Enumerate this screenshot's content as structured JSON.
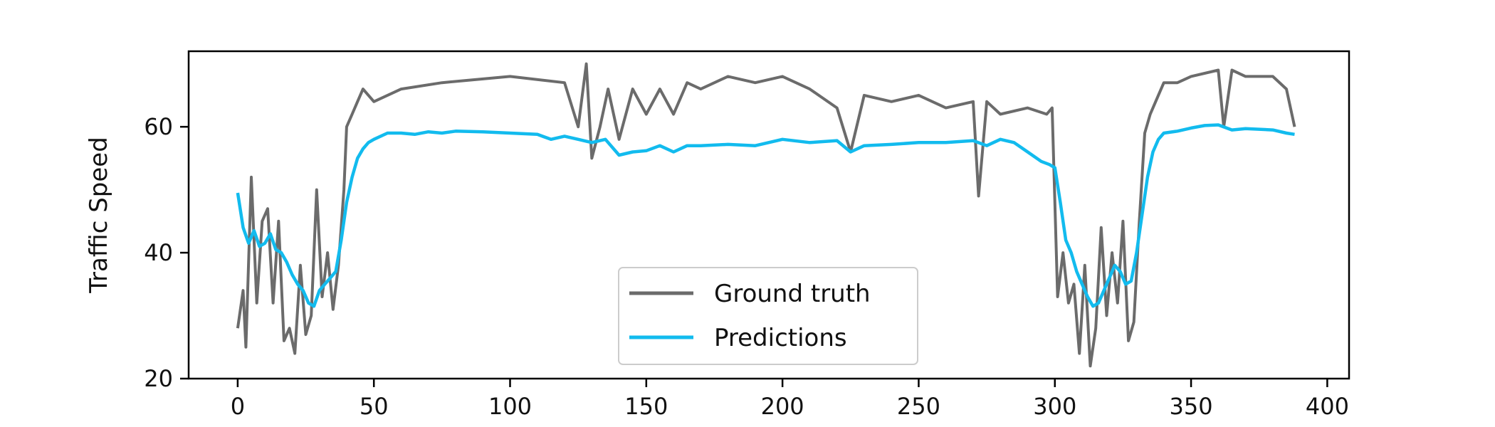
{
  "chart_data": {
    "type": "line",
    "title": "",
    "xlabel": "",
    "ylabel": "Traffic Speed",
    "xlim": [
      -18,
      408
    ],
    "ylim": [
      20,
      72
    ],
    "xticks": [
      "0",
      "50",
      "100",
      "150",
      "200",
      "250",
      "300",
      "350",
      "400"
    ],
    "yticks": [
      "20",
      "40",
      "60"
    ],
    "legend": {
      "placement": "bottom-center"
    },
    "grid": false,
    "series": [
      {
        "name": "Ground truth",
        "color": "#6b6b6b",
        "x": [
          0,
          2,
          3,
          5,
          7,
          9,
          11,
          13,
          15,
          17,
          19,
          21,
          23,
          25,
          27,
          29,
          31,
          33,
          35,
          37,
          39,
          40,
          42,
          44,
          46,
          50,
          60,
          75,
          100,
          120,
          125,
          128,
          130,
          133,
          136,
          140,
          145,
          150,
          155,
          160,
          165,
          170,
          175,
          180,
          190,
          200,
          210,
          220,
          225,
          230,
          240,
          250,
          260,
          270,
          272,
          275,
          280,
          290,
          297,
          299,
          301,
          303,
          305,
          307,
          309,
          311,
          313,
          315,
          317,
          319,
          321,
          323,
          325,
          327,
          329,
          331,
          333,
          335,
          337,
          340,
          345,
          350,
          360,
          362,
          365,
          370,
          380,
          385,
          388
        ],
        "y": [
          28,
          34,
          25,
          52,
          32,
          45,
          47,
          32,
          45,
          26,
          28,
          24,
          38,
          27,
          30,
          50,
          33,
          40,
          31,
          38,
          50,
          60,
          62,
          64,
          66,
          64,
          66,
          67,
          68,
          67,
          60,
          70,
          55,
          60,
          66,
          58,
          66,
          62,
          66,
          62,
          67,
          66,
          67,
          68,
          67,
          68,
          66,
          63,
          56,
          65,
          64,
          65,
          63,
          64,
          49,
          64,
          62,
          63,
          62,
          63,
          33,
          40,
          32,
          35,
          24,
          38,
          22,
          28,
          44,
          30,
          40,
          32,
          45,
          26,
          29,
          45,
          59,
          62,
          64,
          67,
          67,
          68,
          69,
          60,
          69,
          68,
          68,
          66,
          60
        ]
      },
      {
        "name": "Predictions",
        "color": "#12bbee",
        "x": [
          0,
          2,
          4,
          6,
          8,
          10,
          12,
          14,
          16,
          18,
          20,
          22,
          24,
          26,
          28,
          30,
          32,
          34,
          36,
          38,
          40,
          42,
          44,
          46,
          48,
          50,
          55,
          60,
          65,
          70,
          75,
          80,
          90,
          100,
          110,
          115,
          120,
          125,
          130,
          135,
          140,
          145,
          150,
          155,
          160,
          165,
          170,
          180,
          190,
          200,
          210,
          220,
          225,
          230,
          240,
          250,
          260,
          270,
          275,
          280,
          285,
          290,
          295,
          298,
          300,
          302,
          304,
          306,
          308,
          310,
          312,
          314,
          316,
          318,
          320,
          322,
          324,
          326,
          328,
          330,
          332,
          334,
          336,
          338,
          340,
          345,
          350,
          355,
          360,
          365,
          370,
          380,
          385,
          388
        ],
        "y": [
          49.5,
          44,
          41.5,
          43.5,
          41,
          41.5,
          43,
          40.5,
          40,
          38.5,
          36.5,
          35,
          34,
          32,
          31.5,
          34,
          35,
          36,
          37,
          42,
          48,
          52,
          55,
          56.5,
          57.5,
          58,
          59,
          59,
          58.8,
          59.2,
          59,
          59.3,
          59.2,
          59,
          58.8,
          58,
          58.5,
          58,
          57.5,
          58,
          55.5,
          56,
          56.2,
          57,
          56,
          57,
          57,
          57.2,
          57,
          58,
          57.5,
          57.8,
          56,
          57,
          57.2,
          57.5,
          57.5,
          57.8,
          57,
          58,
          57.5,
          56,
          54.5,
          54,
          53.5,
          48,
          42,
          40,
          37,
          35,
          33,
          31.5,
          32,
          34,
          36,
          38,
          37,
          35,
          35.5,
          40,
          46,
          52,
          56,
          58,
          59,
          59.3,
          59.8,
          60.2,
          60.3,
          59.5,
          59.7,
          59.5,
          59,
          58.8
        ]
      }
    ]
  }
}
